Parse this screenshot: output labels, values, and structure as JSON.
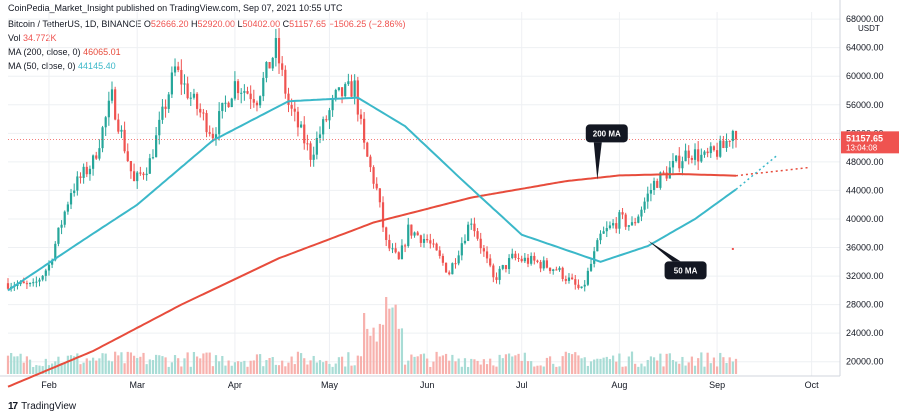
{
  "publish_line": "CoinPedia_Market_Insight published on TradingView.com, Sep 07, 2021 10:55 UTC",
  "branding": {
    "logo_text": "TradingView",
    "logo_mark": "17"
  },
  "legend": {
    "symbol": "Bitcoin / TetherUS, 1D, BINANCE",
    "ohlc": [
      {
        "key": "O",
        "value": "52666.20"
      },
      {
        "key": "H",
        "value": "52920.00"
      },
      {
        "key": "L",
        "value": "50402.00"
      },
      {
        "key": "C",
        "value": "51157.65"
      }
    ],
    "change": "−1506.25 (−2.86%)",
    "vol_label": "Vol",
    "vol_value": "34.772K",
    "ma200_label": "MA (200, close, 0)",
    "ma200_value": "46065.01",
    "ma50_label": "MA (50, close, 0)",
    "ma50_value": "44145.40"
  },
  "price_badge": {
    "price": "51157.65",
    "countdown": "13:04:08"
  },
  "currency_label": "USDT",
  "colors": {
    "up": "#26a69a",
    "down": "#ef5350",
    "ma200": "#e74c3c",
    "ma50": "#3bb8c9",
    "vol_up": "#a8dcd5",
    "vol_down": "#f7b1ad",
    "grid": "#eef0f3",
    "last_price": "#ef5350"
  },
  "chart_data": {
    "type": "candlestick",
    "y_axis": {
      "ticks": [
        20000,
        24000,
        28000,
        32000,
        36000,
        40000,
        44000,
        48000,
        52000,
        56000,
        60000,
        64000,
        68000
      ],
      "range": [
        18000,
        69000
      ],
      "position": "right"
    },
    "x_axis": {
      "ticks": [
        {
          "label": "Feb",
          "date": "2021-02-01"
        },
        {
          "label": "Mar",
          "date": "2021-03-01"
        },
        {
          "label": "Apr",
          "date": "2021-04-01"
        },
        {
          "label": "May",
          "date": "2021-05-01"
        },
        {
          "label": "Jun",
          "date": "2021-06-01"
        },
        {
          "label": "Jul",
          "date": "2021-07-01"
        },
        {
          "label": "Aug",
          "date": "2021-08-01"
        },
        {
          "label": "Sep",
          "date": "2021-09-01"
        },
        {
          "label": "Oct",
          "date": "2021-10-01"
        }
      ],
      "range": [
        "2021-01-19",
        "2021-10-10"
      ]
    },
    "price_anchors": [
      [
        "2021-01-19",
        31000
      ],
      [
        "2021-01-27",
        30500
      ],
      [
        "2021-02-01",
        33500
      ],
      [
        "2021-02-08",
        44000
      ],
      [
        "2021-02-15",
        48000
      ],
      [
        "2021-02-21",
        57000
      ],
      [
        "2021-02-28",
        45000
      ],
      [
        "2021-03-05",
        48000
      ],
      [
        "2021-03-13",
        61000
      ],
      [
        "2021-03-18",
        57000
      ],
      [
        "2021-03-25",
        52000
      ],
      [
        "2021-04-01",
        59000
      ],
      [
        "2021-04-08",
        57000
      ],
      [
        "2021-04-14",
        64000
      ],
      [
        "2021-04-18",
        56000
      ],
      [
        "2021-04-25",
        49000
      ],
      [
        "2021-05-03",
        57000
      ],
      [
        "2021-05-09",
        58500
      ],
      [
        "2021-05-12",
        50000
      ],
      [
        "2021-05-16",
        44000
      ],
      [
        "2021-05-19",
        36500
      ],
      [
        "2021-05-23",
        34000
      ],
      [
        "2021-05-26",
        38500
      ],
      [
        "2021-06-01",
        37000
      ],
      [
        "2021-06-08",
        32500
      ],
      [
        "2021-06-15",
        40000
      ],
      [
        "2021-06-22",
        31500
      ],
      [
        "2021-06-28",
        34500
      ],
      [
        "2021-07-05",
        34000
      ],
      [
        "2021-07-12",
        33000
      ],
      [
        "2021-07-20",
        29800
      ],
      [
        "2021-07-26",
        37500
      ],
      [
        "2021-08-01",
        40000
      ],
      [
        "2021-08-05",
        39000
      ],
      [
        "2021-08-12",
        45000
      ],
      [
        "2021-08-16",
        46500
      ],
      [
        "2021-08-23",
        49500
      ],
      [
        "2021-08-28",
        48500
      ],
      [
        "2021-09-03",
        50000
      ],
      [
        "2021-09-06",
        52500
      ],
      [
        "2021-09-07",
        51157.65
      ]
    ],
    "ma200_anchors": [
      [
        "2021-01-19",
        16500
      ],
      [
        "2021-02-15",
        21500
      ],
      [
        "2021-03-15",
        28000
      ],
      [
        "2021-04-15",
        34500
      ],
      [
        "2021-05-15",
        39500
      ],
      [
        "2021-06-15",
        43000
      ],
      [
        "2021-07-15",
        45300
      ],
      [
        "2021-08-01",
        46100
      ],
      [
        "2021-08-20",
        46300
      ],
      [
        "2021-09-07",
        46065
      ]
    ],
    "ma50_anchors": [
      [
        "2021-01-19",
        30000
      ],
      [
        "2021-02-10",
        36500
      ],
      [
        "2021-03-01",
        42000
      ],
      [
        "2021-03-25",
        51000
      ],
      [
        "2021-04-18",
        56500
      ],
      [
        "2021-05-10",
        57000
      ],
      [
        "2021-05-25",
        53000
      ],
      [
        "2021-06-12",
        45500
      ],
      [
        "2021-07-01",
        37800
      ],
      [
        "2021-07-26",
        34000
      ],
      [
        "2021-08-10",
        36200
      ],
      [
        "2021-08-25",
        40000
      ],
      [
        "2021-09-07",
        44145
      ]
    ],
    "projection_ma200": [
      [
        "2021-09-07",
        46065
      ],
      [
        "2021-09-30",
        47200
      ]
    ],
    "projection_ma50": [
      [
        "2021-09-07",
        44145
      ],
      [
        "2021-09-20",
        48900
      ]
    ],
    "stray_marks": [
      [
        "2021-09-06",
        35800
      ]
    ],
    "last_price": 51157.65,
    "volume_range": [
      0,
      48000
    ],
    "annotations": [
      {
        "text": "200 MA",
        "anchor": [
          "2021-07-25",
          45500
        ],
        "label_at": [
          "2021-07-28",
          52000
        ]
      },
      {
        "text": "50 MA",
        "anchor": [
          "2021-08-10",
          37000
        ],
        "label_at": [
          "2021-08-22",
          32800
        ]
      }
    ]
  }
}
